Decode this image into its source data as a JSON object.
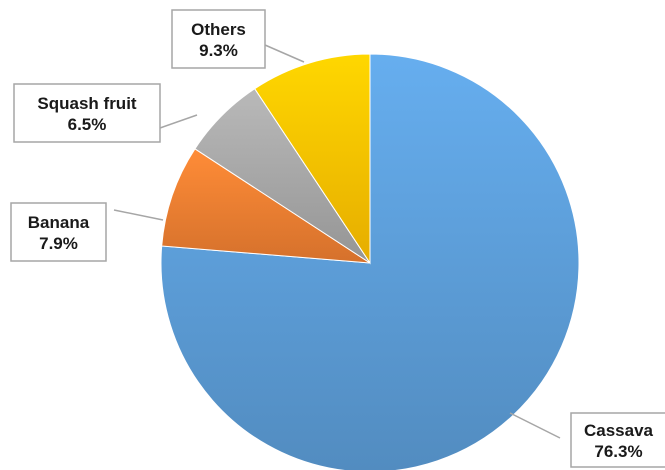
{
  "chart_data": {
    "type": "pie",
    "title": "",
    "start_angle_deg": 0,
    "direction": "clockwise",
    "slices": [
      {
        "label": "Cassava",
        "value": 76.3,
        "value_label": "76.3%",
        "color": "#5b9bd5"
      },
      {
        "label": "Banana",
        "value": 7.9,
        "value_label": "7.9%",
        "color": "#ed7d31"
      },
      {
        "label": "Squash fruit",
        "value": 6.5,
        "value_label": "6.5%",
        "color": "#a5a5a5"
      },
      {
        "label": "Others",
        "value": 9.3,
        "value_label": "9.3%",
        "color": "#ffc000"
      }
    ],
    "legend": "none",
    "data_labels": "callouts with category name and percentage"
  }
}
